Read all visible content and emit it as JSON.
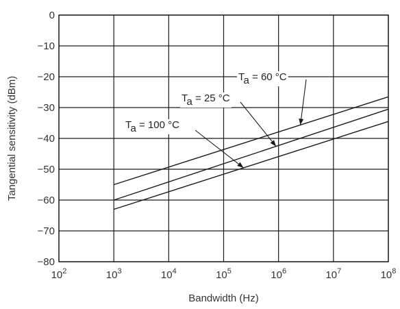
{
  "chart_data": {
    "type": "line",
    "xlabel": "Bandwidth (Hz)",
    "ylabel": "Tangential sensitivity (dBm)",
    "x_scale": "log",
    "xlim": [
      100,
      100000000
    ],
    "ylim": [
      -80,
      0
    ],
    "grid": true,
    "x_ticks": [
      {
        "value": 100,
        "base": "10",
        "exp": "2"
      },
      {
        "value": 1000,
        "base": "10",
        "exp": "3"
      },
      {
        "value": 10000,
        "base": "10",
        "exp": "4"
      },
      {
        "value": 100000,
        "base": "10",
        "exp": "5"
      },
      {
        "value": 1000000,
        "base": "10",
        "exp": "6"
      },
      {
        "value": 10000000,
        "base": "10",
        "exp": "7"
      },
      {
        "value": 100000000,
        "base": "10",
        "exp": "8"
      }
    ],
    "y_ticks": [
      {
        "value": 0,
        "label": "0"
      },
      {
        "value": -10,
        "label": "−10"
      },
      {
        "value": -20,
        "label": "−20"
      },
      {
        "value": -30,
        "label": "−30"
      },
      {
        "value": -40,
        "label": "−40"
      },
      {
        "value": -50,
        "label": "−50"
      },
      {
        "value": -60,
        "label": "−60"
      },
      {
        "value": -70,
        "label": "−70"
      },
      {
        "value": -80,
        "label": "−80"
      }
    ],
    "series": [
      {
        "name": "Ta = 60 °C",
        "x": [
          1000,
          100000000
        ],
        "y": [
          -55,
          -26.5
        ]
      },
      {
        "name": "Ta = 25 °C",
        "x": [
          1000,
          100000000
        ],
        "y": [
          -60,
          -30.5
        ]
      },
      {
        "name": "Ta = 100 °C",
        "x": [
          1000,
          100000000
        ],
        "y": [
          -63,
          -34.5
        ]
      }
    ],
    "annotations": [
      {
        "series": 0,
        "main": "T",
        "sub": "a",
        "rest": " = 60 °C"
      },
      {
        "series": 1,
        "main": "T",
        "sub": "a",
        "rest": " = 25 °C"
      },
      {
        "series": 2,
        "main": "T",
        "sub": "a",
        "rest": " = 100 °C"
      }
    ]
  }
}
